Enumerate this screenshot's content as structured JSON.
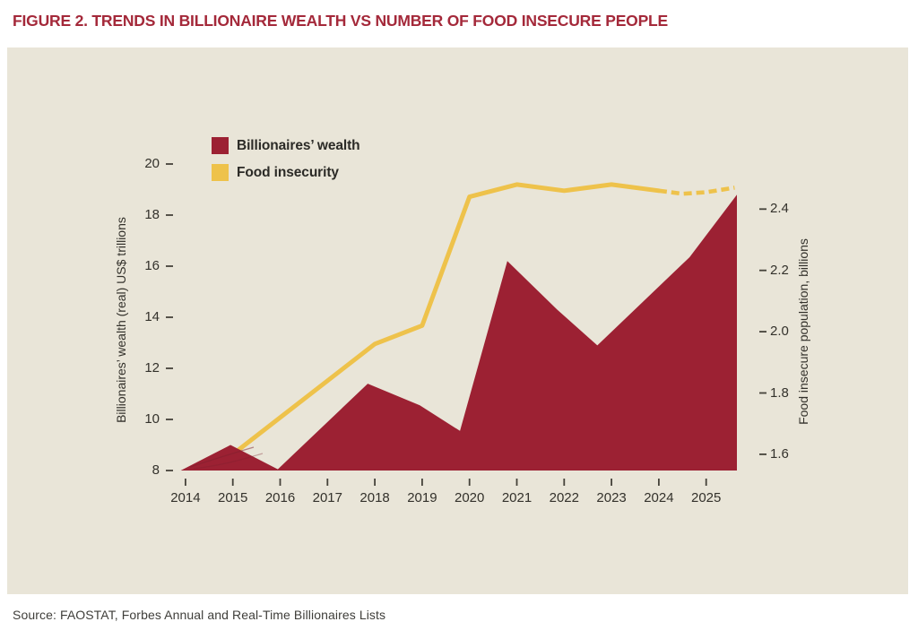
{
  "figure": {
    "title": "FIGURE 2. TRENDS IN BILLIONAIRE WEALTH VS NUMBER OF FOOD INSECURE PEOPLE",
    "source": "Source: FAOSTAT, Forbes Annual and Real-Time Billionaires Lists"
  },
  "legend": {
    "items": [
      {
        "label": "Billionaires’ wealth",
        "color": "#9c2133"
      },
      {
        "label": "Food insecurity",
        "color": "#eec24b"
      }
    ]
  },
  "colors": {
    "page_background": "#ffffff",
    "panel_background": "#e9e5d8",
    "title_red": "#a4293a",
    "wealth_red": "#9c2133",
    "insecurity_yellow": "#eec24b",
    "tick_text": "#33312b",
    "tick_mark": "#45423a"
  },
  "chart_data": {
    "type": "area",
    "title": "Trends in billionaire wealth vs number of food insecure people",
    "grid": false,
    "legend_position": "top-left inside plot",
    "x_axis": {
      "ticks": [
        2014,
        2015,
        2016,
        2017,
        2018,
        2019,
        2020,
        2021,
        2022,
        2023,
        2024,
        2025
      ],
      "range": [
        2013.85,
        2025.7
      ]
    },
    "left_axis": {
      "label": "Billionaires’ wealth (real) US$ trillions",
      "ticks": [
        8,
        10,
        12,
        14,
        16,
        18,
        20
      ],
      "range": [
        8,
        20.6
      ]
    },
    "right_axis": {
      "label": "Food insecure population, billions",
      "tick_labels": [
        "1.6",
        "1.8",
        "2.0",
        "2.2",
        "2.4"
      ],
      "range": [
        1.55,
        2.5
      ]
    },
    "series": [
      {
        "name": "Billionaires’ wealth",
        "type": "area",
        "axis": "left",
        "color": "#9c2133",
        "baseline": 8,
        "points": [
          [
            2013.9,
            8.0
          ],
          [
            2014.95,
            9.0
          ],
          [
            2015.95,
            8.05
          ],
          [
            2017.85,
            11.4
          ],
          [
            2018.95,
            10.55
          ],
          [
            2019.8,
            9.55
          ],
          [
            2020.8,
            16.2
          ],
          [
            2021.85,
            14.3
          ],
          [
            2022.7,
            12.9
          ],
          [
            2024.65,
            16.35
          ],
          [
            2025.65,
            18.8
          ]
        ]
      },
      {
        "name": "Food insecurity",
        "type": "line",
        "axis": "right",
        "color": "#eec24b",
        "points": [
          [
            2015.0,
            1.6
          ],
          [
            2018.0,
            1.96
          ],
          [
            2019.0,
            2.02
          ],
          [
            2020.0,
            2.44
          ],
          [
            2021.0,
            2.48
          ],
          [
            2022.0,
            2.46
          ],
          [
            2023.0,
            2.48
          ],
          [
            2024.0,
            2.46
          ]
        ],
        "dashed_points": [
          [
            2024.0,
            2.46
          ],
          [
            2024.5,
            2.45
          ],
          [
            2025.0,
            2.455
          ],
          [
            2025.6,
            2.47
          ]
        ],
        "dashed_note": "segment after 2024 is dashed"
      }
    ]
  }
}
